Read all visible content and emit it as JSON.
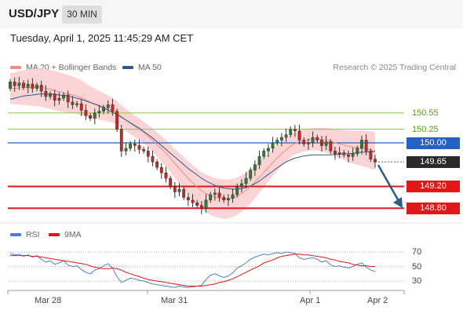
{
  "header": {
    "symbol": "USD/JPY",
    "timeframe": "30 MIN",
    "datetime": "Tuesday, April 1, 2025 11:45:29 AM CET"
  },
  "legend": {
    "ma20_label": "MA 20 + Bollinger Bands",
    "ma20_color": "#f28b82",
    "ma50_label": "MA 50",
    "ma50_color": "#2c5a8c",
    "copyright": "Research © 2025 Trading Central"
  },
  "rsi_legend": {
    "rsi_label": "RSI",
    "rsi_color": "#4e7fd6",
    "ma9_label": "9MA",
    "ma9_color": "#e01818"
  },
  "levels": {
    "r2": "150.55",
    "r1": "150.25",
    "pivot": "150.00",
    "current": "149.65",
    "s1": "149.20",
    "s2": "148.80"
  },
  "colors": {
    "candle_up": "#2e7d32",
    "candle_down": "#c62828",
    "pivot": "#2361c4",
    "support": "#e01818",
    "resistance": "#8cc63f",
    "band_fill": "#fbd0d0",
    "arrow": "#2c5a8c"
  },
  "chart_data": {
    "type": "candlestick",
    "x_ticks": [
      "Mar 28",
      "Mar 31",
      "Apr 1",
      "Apr 2"
    ],
    "ylim": [
      148.7,
      151.15
    ],
    "close": [
      151.12,
      151.05,
      151.1,
      151.02,
      151.08,
      151.0,
      151.06,
      150.95,
      150.85,
      150.9,
      150.78,
      150.82,
      150.88,
      150.75,
      150.7,
      150.72,
      150.6,
      150.5,
      150.45,
      150.55,
      150.58,
      150.65,
      150.7,
      150.58,
      150.25,
      149.85,
      149.9,
      149.98,
      149.95,
      149.88,
      149.85,
      149.75,
      149.65,
      149.55,
      149.45,
      149.35,
      149.2,
      149.1,
      149.15,
      149.0,
      148.95,
      148.9,
      148.85,
      148.8,
      148.95,
      149.05,
      149.08,
      149.0,
      148.95,
      148.98,
      149.05,
      149.2,
      149.25,
      149.35,
      149.5,
      149.6,
      149.75,
      149.85,
      149.9,
      150.0,
      150.05,
      150.1,
      150.15,
      150.25,
      150.22,
      150.05,
      149.98,
      150.0,
      150.1,
      150.05,
      149.95,
      150.02,
      149.85,
      149.8,
      149.82,
      149.78,
      149.75,
      149.8,
      149.9,
      150.05,
      149.85,
      149.7,
      149.65
    ],
    "open": [
      151.0,
      151.12,
      151.05,
      151.1,
      151.02,
      151.08,
      151.0,
      151.06,
      150.95,
      150.85,
      150.9,
      150.78,
      150.82,
      150.88,
      150.75,
      150.7,
      150.72,
      150.6,
      150.5,
      150.45,
      150.55,
      150.58,
      150.65,
      150.7,
      150.58,
      150.25,
      149.85,
      149.9,
      149.98,
      149.95,
      149.88,
      149.85,
      149.75,
      149.65,
      149.55,
      149.45,
      149.35,
      149.2,
      149.1,
      149.15,
      149.0,
      148.95,
      148.9,
      148.85,
      148.8,
      148.95,
      149.05,
      149.08,
      149.0,
      148.95,
      148.98,
      149.05,
      149.2,
      149.25,
      149.35,
      149.5,
      149.6,
      149.75,
      149.85,
      149.9,
      150.0,
      150.05,
      150.1,
      150.15,
      150.25,
      150.22,
      150.05,
      149.98,
      150.0,
      150.1,
      150.05,
      149.95,
      150.02,
      149.85,
      149.8,
      149.82,
      149.78,
      149.75,
      149.8,
      149.9,
      150.05,
      149.85,
      149.7
    ],
    "ma20": [
      151.0,
      151.0,
      151.01,
      151.01,
      151.02,
      151.02,
      151.02,
      151.02,
      151.0,
      150.98,
      150.96,
      150.94,
      150.92,
      150.9,
      150.88,
      150.86,
      150.83,
      150.79,
      150.75,
      150.72,
      150.69,
      150.66,
      150.63,
      150.6,
      150.55,
      150.48,
      150.42,
      150.36,
      150.3,
      150.25,
      150.19,
      150.12,
      150.05,
      149.97,
      149.89,
      149.81,
      149.72,
      149.62,
      149.53,
      149.44,
      149.35,
      149.27,
      149.19,
      149.12,
      149.07,
      149.03,
      149.0,
      148.98,
      148.97,
      148.97,
      148.99,
      149.02,
      149.07,
      149.13,
      149.2,
      149.28,
      149.37,
      149.46,
      149.55,
      149.64,
      149.72,
      149.8,
      149.87,
      149.94,
      149.99,
      150.02,
      150.04,
      150.06,
      150.07,
      150.07,
      150.06,
      150.05,
      150.03,
      150.0,
      149.98,
      149.96,
      149.94,
      149.92,
      149.91,
      149.9,
      149.89,
      149.87,
      149.85
    ],
    "ma50": [
      150.8,
      150.82,
      150.84,
      150.86,
      150.87,
      150.88,
      150.89,
      150.9,
      150.9,
      150.9,
      150.89,
      150.88,
      150.87,
      150.86,
      150.84,
      150.82,
      150.8,
      150.77,
      150.74,
      150.71,
      150.68,
      150.64,
      150.6,
      150.56,
      150.52,
      150.47,
      150.42,
      150.37,
      150.32,
      150.27,
      150.21,
      150.15,
      150.09,
      150.02,
      149.95,
      149.88,
      149.81,
      149.74,
      149.67,
      149.6,
      149.53,
      149.47,
      149.41,
      149.35,
      149.3,
      149.26,
      149.22,
      149.19,
      149.17,
      149.16,
      149.15,
      149.15,
      149.16,
      149.18,
      149.21,
      149.25,
      149.3,
      149.36,
      149.42,
      149.48,
      149.54,
      149.6,
      149.65,
      149.69,
      149.72,
      149.74,
      149.76,
      149.77,
      149.78,
      149.78,
      149.78,
      149.78,
      149.78,
      149.79,
      149.79,
      149.8,
      149.8,
      149.81,
      149.82,
      149.83,
      149.83,
      149.84,
      149.84
    ],
    "rsi": [
      68,
      66,
      67,
      64,
      66,
      63,
      65,
      60,
      56,
      58,
      53,
      55,
      58,
      52,
      50,
      51,
      46,
      42,
      40,
      45,
      47,
      51,
      54,
      48,
      36,
      28,
      31,
      34,
      33,
      31,
      30,
      28,
      26,
      25,
      24,
      23,
      22,
      21,
      23,
      22,
      21,
      22,
      23,
      24,
      32,
      38,
      40,
      37,
      35,
      37,
      41,
      48,
      51,
      55,
      60,
      63,
      65,
      67,
      66,
      68,
      69,
      68,
      70,
      69,
      68,
      62,
      60,
      61,
      62,
      60,
      56,
      58,
      52,
      50,
      51,
      49,
      48,
      50,
      53,
      55,
      49,
      45,
      43
    ],
    "rsi_ma9": [
      65,
      65,
      65,
      65,
      65,
      64,
      64,
      63,
      62,
      61,
      60,
      59,
      58,
      57,
      56,
      55,
      54,
      53,
      51,
      49,
      48,
      47,
      47,
      48,
      47,
      45,
      42,
      40,
      38,
      36,
      34,
      32,
      31,
      30,
      29,
      28,
      27,
      26,
      25,
      24,
      23,
      23,
      23,
      23,
      24,
      25,
      26,
      28,
      29,
      31,
      33,
      36,
      39,
      42,
      45,
      48,
      51,
      55,
      57,
      59,
      62,
      64,
      65,
      66,
      67,
      67,
      66,
      66,
      65,
      64,
      63,
      62,
      60,
      59,
      57,
      56,
      55,
      53,
      52,
      51,
      51,
      50,
      50
    ],
    "rsi_levels": [
      "70",
      "50",
      "30"
    ],
    "resistance_levels": [
      150.55,
      150.25
    ],
    "pivot_level": 150.0,
    "support_levels": [
      149.2,
      148.8
    ]
  }
}
